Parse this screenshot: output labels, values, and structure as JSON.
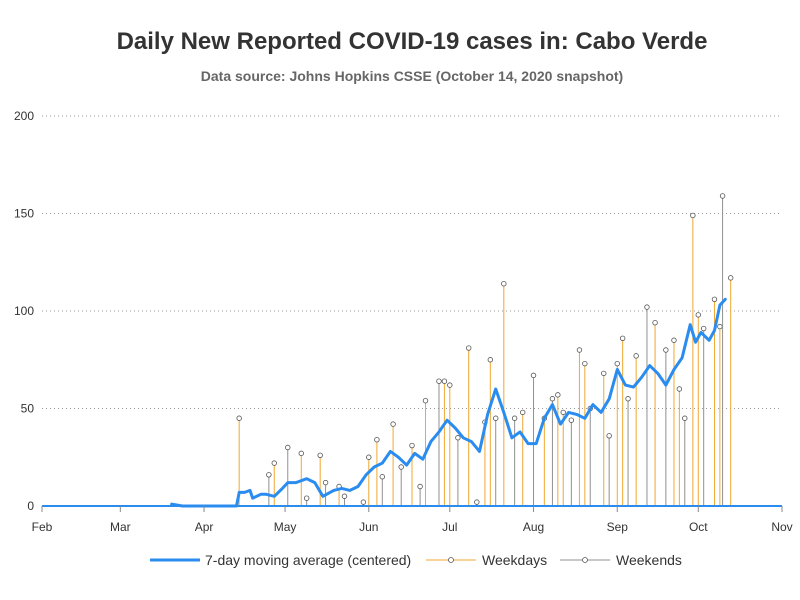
{
  "chart_data": {
    "type": "line",
    "title": "Daily New Reported COVID-19 cases in: Cabo Verde",
    "subtitle": "Data source: Johns Hopkins CSSE (October 14, 2020 snapshot)",
    "xlabel": "",
    "ylabel": "",
    "x_range": [
      "2020-02-01",
      "2020-11-01"
    ],
    "ylim": [
      0,
      200
    ],
    "y_ticks": [
      0,
      50,
      100,
      150,
      200
    ],
    "x_tick_labels": [
      "Feb",
      "Mar",
      "Apr",
      "May",
      "Jun",
      "Jul",
      "Aug",
      "Sep",
      "Oct",
      "Nov"
    ],
    "grid": "horizontal dotted",
    "legend_position": "bottom",
    "colors": {
      "moving_average": "#2b8cf0",
      "weekdays": "#f0a830",
      "weekends": "#909090",
      "marker_fill": "#ffffff",
      "marker_edge": "#555555"
    },
    "series": [
      {
        "name": "7-day moving average (centered)",
        "type": "line",
        "x": [
          "2020-03-20",
          "2020-03-24",
          "2020-03-28",
          "2020-04-01",
          "2020-04-06",
          "2020-04-09",
          "2020-04-13",
          "2020-04-14",
          "2020-04-16",
          "2020-04-18",
          "2020-04-19",
          "2020-04-22",
          "2020-04-24",
          "2020-04-27",
          "2020-04-30",
          "2020-05-02",
          "2020-05-05",
          "2020-05-09",
          "2020-05-12",
          "2020-05-15",
          "2020-05-19",
          "2020-05-22",
          "2020-05-25",
          "2020-05-28",
          "2020-05-31",
          "2020-06-03",
          "2020-06-06",
          "2020-06-09",
          "2020-06-12",
          "2020-06-15",
          "2020-06-18",
          "2020-06-21",
          "2020-06-24",
          "2020-06-27",
          "2020-06-30",
          "2020-07-03",
          "2020-07-06",
          "2020-07-09",
          "2020-07-12",
          "2020-07-15",
          "2020-07-18",
          "2020-07-21",
          "2020-07-24",
          "2020-07-27",
          "2020-07-30",
          "2020-08-02",
          "2020-08-05",
          "2020-08-08",
          "2020-08-11",
          "2020-08-14",
          "2020-08-17",
          "2020-08-20",
          "2020-08-23",
          "2020-08-26",
          "2020-08-29",
          "2020-09-01",
          "2020-09-04",
          "2020-09-07",
          "2020-09-10",
          "2020-09-13",
          "2020-09-16",
          "2020-09-19",
          "2020-09-22",
          "2020-09-25",
          "2020-09-28",
          "2020-09-30",
          "2020-10-02",
          "2020-10-05",
          "2020-10-07",
          "2020-10-09",
          "2020-10-11"
        ],
        "values": [
          1,
          0,
          0,
          0,
          0,
          0,
          0,
          7,
          7,
          8,
          4,
          6,
          6,
          5,
          9,
          12,
          12,
          14,
          12,
          5,
          8,
          9,
          8,
          10,
          16,
          20,
          22,
          28,
          25,
          21,
          27,
          24,
          33,
          38,
          44,
          40,
          35,
          33,
          28,
          47,
          60,
          48,
          35,
          38,
          32,
          32,
          45,
          52,
          42,
          48,
          47,
          45,
          52,
          48,
          55,
          70,
          62,
          61,
          66,
          72,
          68,
          62,
          70,
          76,
          93,
          84,
          89,
          85,
          90,
          103,
          106
        ]
      },
      {
        "name": "Weekdays",
        "type": "stem",
        "x": [
          "2020-04-14",
          "2020-04-27",
          "2020-05-07",
          "2020-05-14",
          "2020-05-21",
          "2020-06-01",
          "2020-06-04",
          "2020-06-10",
          "2020-06-17",
          "2020-06-22",
          "2020-06-29",
          "2020-07-01",
          "2020-07-08",
          "2020-07-14",
          "2020-07-16",
          "2020-07-21",
          "2020-07-28",
          "2020-08-05",
          "2020-08-10",
          "2020-08-12",
          "2020-08-18",
          "2020-08-20",
          "2020-08-27",
          "2020-09-01",
          "2020-09-03",
          "2020-09-08",
          "2020-09-15",
          "2020-09-22",
          "2020-09-24",
          "2020-09-29",
          "2020-10-01",
          "2020-10-07",
          "2020-10-09",
          "2020-10-13"
        ],
        "values": [
          45,
          22,
          27,
          26,
          10,
          25,
          34,
          42,
          31,
          54,
          64,
          62,
          81,
          43,
          75,
          114,
          48,
          45,
          57,
          48,
          80,
          73,
          68,
          73,
          86,
          77,
          94,
          85,
          60,
          149,
          98,
          106,
          92,
          117
        ]
      },
      {
        "name": "Weekends",
        "type": "stem",
        "x": [
          "2020-04-25",
          "2020-05-02",
          "2020-05-09",
          "2020-05-16",
          "2020-05-23",
          "2020-05-30",
          "2020-06-06",
          "2020-06-13",
          "2020-06-20",
          "2020-06-27",
          "2020-07-04",
          "2020-07-11",
          "2020-07-18",
          "2020-07-25",
          "2020-08-01",
          "2020-08-08",
          "2020-08-15",
          "2020-08-22",
          "2020-08-29",
          "2020-09-05",
          "2020-09-12",
          "2020-09-19",
          "2020-09-26",
          "2020-10-03",
          "2020-10-10"
        ],
        "values": [
          16,
          30,
          4,
          12,
          5,
          2,
          15,
          20,
          10,
          64,
          35,
          2,
          45,
          45,
          67,
          55,
          44,
          50,
          36,
          55,
          102,
          80,
          45,
          91,
          159
        ]
      }
    ]
  }
}
